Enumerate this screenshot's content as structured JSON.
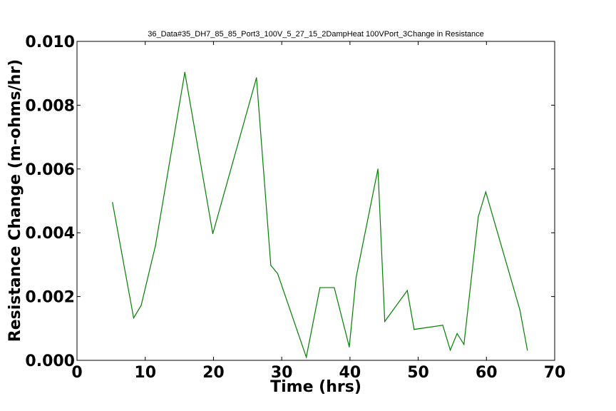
{
  "chart_data": {
    "type": "line",
    "title": "36_Data#35_DH7_85_85_Port3_100V_5_27_15_2DampHeat 100VPort_3Change in Resistance",
    "xlabel": "Time (hrs)",
    "ylabel": "Resistance Change (m-ohms/hr)",
    "xlim": [
      0,
      70
    ],
    "ylim": [
      0,
      0.01
    ],
    "xticks": [
      0,
      10,
      20,
      30,
      40,
      50,
      60,
      70
    ],
    "xtick_labels": [
      "0",
      "10",
      "20",
      "30",
      "40",
      "50",
      "60",
      "70"
    ],
    "yticks": [
      0,
      0.002,
      0.004,
      0.006,
      0.008,
      0.01
    ],
    "ytick_labels": [
      "0.000",
      "0.002",
      "0.004",
      "0.006",
      "0.008",
      "0.010"
    ],
    "grid": false,
    "series": [
      {
        "color": "#008000",
        "x": [
          5.2,
          8.3,
          9.4,
          11.5,
          15.8,
          19.9,
          26.3,
          28.4,
          29.4,
          33.6,
          35.6,
          37.7,
          39.9,
          40.9,
          44.1,
          45.1,
          48.4,
          49.4,
          53.6,
          54.7,
          55.7,
          56.7,
          58.8,
          59.9,
          64.9,
          66.0
        ],
        "y": [
          0.00495,
          0.00133,
          0.00172,
          0.0036,
          0.00903,
          0.00397,
          0.00886,
          0.00298,
          0.00272,
          0.0001,
          0.00228,
          0.00228,
          0.00042,
          0.0026,
          0.006,
          0.00122,
          0.00219,
          0.00097,
          0.0011,
          0.00032,
          0.00084,
          0.0005,
          0.0045,
          0.00528,
          0.00158,
          0.00032
        ]
      }
    ]
  }
}
